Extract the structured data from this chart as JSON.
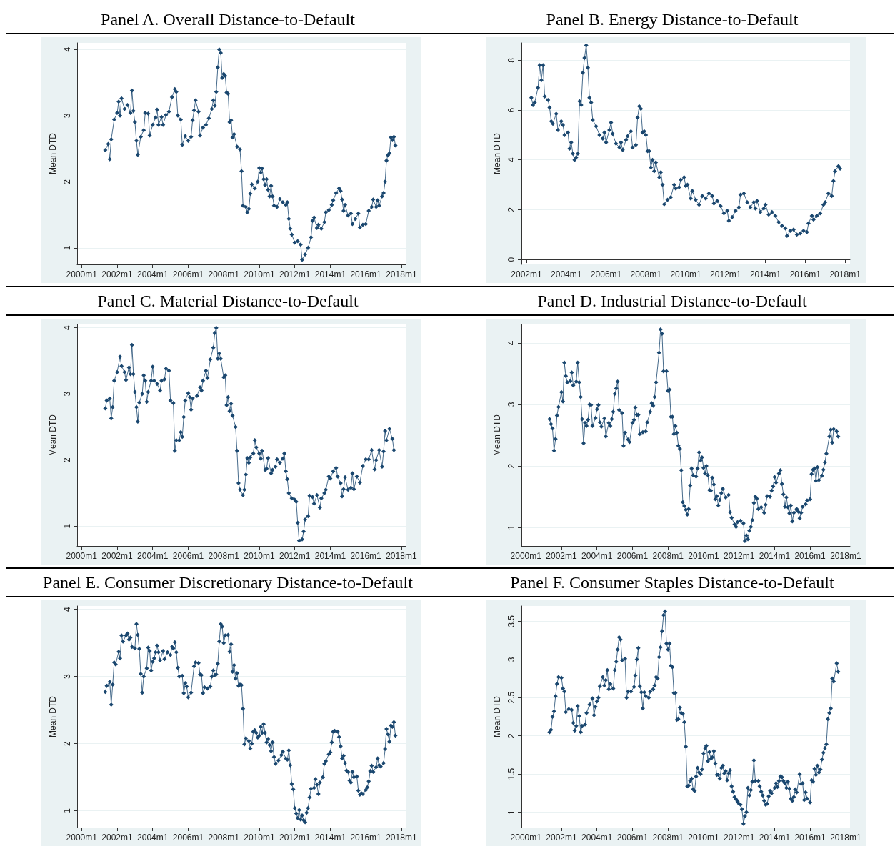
{
  "chart_data": [
    {
      "type": "line",
      "title": "Panel A. Overall Distance-to-Default",
      "ylabel": "Mean DTD",
      "color": "#1a476f",
      "marker": "diamond",
      "grid": "y",
      "xlim": [
        "1999-10",
        "2018-04"
      ],
      "ylim": [
        0.75,
        4.1
      ],
      "yticks": [
        1,
        2,
        3,
        4
      ],
      "xticks": [
        {
          "value": "2000-01",
          "label": "2000m1"
        },
        {
          "value": "2002-01",
          "label": "2002m1"
        },
        {
          "value": "2004-01",
          "label": "2004m1"
        },
        {
          "value": "2006-01",
          "label": "2006m1"
        },
        {
          "value": "2008-01",
          "label": "2008m1"
        },
        {
          "value": "2010-01",
          "label": "2010m1"
        },
        {
          "value": "2012-01",
          "label": "2012m1"
        },
        {
          "value": "2014-01",
          "label": "2014m1"
        },
        {
          "value": "2016-01",
          "label": "2016m1"
        },
        {
          "value": "2018-01",
          "label": "2018m1"
        }
      ],
      "x": [
        "2001-05",
        "2001-07",
        "2001-08",
        "2001-09",
        "2001-11",
        "2002-01",
        "2002-02",
        "2002-03",
        "2002-04",
        "2002-06",
        "2002-08",
        "2002-10",
        "2002-11",
        "2002-12",
        "2003-01",
        "2003-02",
        "2003-03",
        "2003-05",
        "2003-07",
        "2003-08",
        "2003-10",
        "2003-11",
        "2004-01",
        "2004-03",
        "2004-04",
        "2004-05",
        "2004-07",
        "2004-08",
        "2004-10",
        "2004-12",
        "2005-02",
        "2005-04",
        "2005-05",
        "2005-06",
        "2005-08",
        "2005-09",
        "2005-11",
        "2006-01",
        "2006-03",
        "2006-04",
        "2006-05",
        "2006-06",
        "2006-08",
        "2006-09",
        "2006-11",
        "2007-01",
        "2007-03",
        "2007-05",
        "2007-06",
        "2007-07",
        "2007-08",
        "2007-09",
        "2007-10",
        "2007-11",
        "2007-12",
        "2008-01",
        "2008-02",
        "2008-03",
        "2008-04",
        "2008-05",
        "2008-06",
        "2008-07",
        "2008-08",
        "2008-10",
        "2008-12",
        "2009-01",
        "2009-02",
        "2009-04",
        "2009-05",
        "2009-06",
        "2009-07",
        "2009-08",
        "2009-10",
        "2009-12",
        "2010-01",
        "2010-02",
        "2010-03",
        "2010-04",
        "2010-05",
        "2010-06",
        "2010-07",
        "2010-08",
        "2010-09",
        "2010-10",
        "2010-11",
        "2011-01",
        "2011-03",
        "2011-05",
        "2011-07",
        "2011-08",
        "2011-09",
        "2011-10",
        "2011-11",
        "2012-01",
        "2012-03",
        "2012-05",
        "2012-06",
        "2012-08",
        "2012-10",
        "2012-12",
        "2013-01",
        "2013-02",
        "2013-04",
        "2013-05",
        "2013-07",
        "2013-09",
        "2013-10",
        "2013-12",
        "2014-02",
        "2014-03",
        "2014-05",
        "2014-07",
        "2014-08",
        "2014-09",
        "2014-10",
        "2014-11",
        "2015-01",
        "2015-03",
        "2015-04",
        "2015-06",
        "2015-08",
        "2015-09",
        "2015-11",
        "2016-01",
        "2016-03",
        "2016-05",
        "2016-06",
        "2016-08",
        "2016-09",
        "2016-10",
        "2016-12",
        "2017-01",
        "2017-02",
        "2017-03",
        "2017-04",
        "2017-05",
        "2017-06",
        "2017-07",
        "2017-08",
        "2017-09"
      ],
      "values": [
        2.48,
        2.57,
        2.34,
        2.64,
        2.94,
        3.04,
        3.21,
        3.0,
        3.26,
        3.1,
        3.16,
        3.04,
        3.38,
        3.07,
        2.9,
        2.62,
        2.41,
        2.68,
        2.78,
        3.04,
        3.03,
        2.7,
        2.86,
        2.97,
        3.09,
        2.86,
        2.98,
        2.86,
        3.01,
        3.06,
        3.28,
        3.4,
        3.36,
        3.0,
        2.94,
        2.56,
        2.69,
        2.62,
        2.68,
        2.93,
        3.08,
        3.23,
        3.06,
        2.7,
        2.82,
        2.86,
        2.96,
        3.1,
        3.23,
        3.15,
        3.36,
        3.73,
        4.0,
        3.95,
        3.57,
        3.63,
        3.6,
        3.35,
        3.33,
        2.9,
        2.93,
        2.67,
        2.72,
        2.53,
        2.49,
        2.16,
        1.64,
        1.62,
        1.54,
        1.59,
        1.82,
        1.96,
        1.9,
        2.0,
        2.21,
        2.14,
        2.2,
        2.04,
        1.95,
        2.04,
        1.88,
        1.78,
        1.94,
        1.78,
        1.64,
        1.62,
        1.74,
        1.69,
        1.65,
        1.69,
        1.44,
        1.29,
        1.2,
        1.08,
        1.1,
        1.05,
        0.82,
        0.9,
        1.0,
        1.16,
        1.41,
        1.46,
        1.3,
        1.35,
        1.29,
        1.39,
        1.54,
        1.57,
        1.65,
        1.72,
        1.83,
        1.9,
        1.86,
        1.73,
        1.56,
        1.65,
        1.49,
        1.52,
        1.36,
        1.44,
        1.52,
        1.31,
        1.35,
        1.36,
        1.56,
        1.62,
        1.73,
        1.62,
        1.72,
        1.64,
        1.78,
        1.83,
        2.0,
        2.32,
        2.4,
        2.43,
        2.67,
        2.63,
        2.68,
        2.55
      ]
    },
    {
      "type": "line",
      "title": "Panel B. Energy Distance-to-Default",
      "ylabel": "Mean DTD",
      "color": "#1a476f",
      "marker": "diamond",
      "grid": "y",
      "xlim": [
        "2001-10",
        "2018-04"
      ],
      "ylim": [
        -0.2,
        8.7
      ],
      "yticks": [
        0,
        2,
        4,
        6,
        8
      ],
      "xticks": [
        {
          "value": "2002-01",
          "label": "2002m1"
        },
        {
          "value": "2004-01",
          "label": "2004m1"
        },
        {
          "value": "2006-01",
          "label": "2006m1"
        },
        {
          "value": "2008-01",
          "label": "2008m1"
        },
        {
          "value": "2010-01",
          "label": "2010m1"
        },
        {
          "value": "2012-01",
          "label": "2012m1"
        },
        {
          "value": "2014-01",
          "label": "2014m1"
        },
        {
          "value": "2016-01",
          "label": "2016m1"
        },
        {
          "value": "2018-01",
          "label": "2018m1"
        }
      ],
      "x": [
        "2002-04",
        "2002-05",
        "2002-06",
        "2002-08",
        "2002-09",
        "2002-10",
        "2002-11",
        "2002-12",
        "2003-02",
        "2003-03",
        "2003-04",
        "2003-05",
        "2003-07",
        "2003-08",
        "2003-10",
        "2003-11",
        "2003-12",
        "2004-02",
        "2004-03",
        "2004-04",
        "2004-05",
        "2004-06",
        "2004-07",
        "2004-08",
        "2004-09",
        "2004-10",
        "2004-11",
        "2004-12",
        "2005-01",
        "2005-02",
        "2005-03",
        "2005-04",
        "2005-05",
        "2005-07",
        "2005-09",
        "2005-11",
        "2005-12",
        "2006-01",
        "2006-03",
        "2006-04",
        "2006-05",
        "2006-07",
        "2006-09",
        "2006-10",
        "2006-11",
        "2007-01",
        "2007-02",
        "2007-04",
        "2007-05",
        "2007-07",
        "2007-08",
        "2007-09",
        "2007-10",
        "2007-11",
        "2007-12",
        "2008-01",
        "2008-02",
        "2008-03",
        "2008-04",
        "2008-05",
        "2008-06",
        "2008-07",
        "2008-09",
        "2008-10",
        "2008-11",
        "2008-12",
        "2009-02",
        "2009-04",
        "2009-06",
        "2009-07",
        "2009-09",
        "2009-10",
        "2009-12",
        "2010-01",
        "2010-02",
        "2010-04",
        "2010-05",
        "2010-07",
        "2010-09",
        "2010-11",
        "2011-01",
        "2011-03",
        "2011-05",
        "2011-06",
        "2011-08",
        "2011-10",
        "2011-12",
        "2012-02",
        "2012-03",
        "2012-05",
        "2012-07",
        "2012-09",
        "2012-10",
        "2012-12",
        "2013-02",
        "2013-04",
        "2013-06",
        "2013-07",
        "2013-08",
        "2013-10",
        "2013-12",
        "2014-01",
        "2014-03",
        "2014-05",
        "2014-07",
        "2014-09",
        "2014-11",
        "2015-01",
        "2015-02",
        "2015-04",
        "2015-06",
        "2015-08",
        "2015-10",
        "2015-12",
        "2016-02",
        "2016-03",
        "2016-05",
        "2016-06",
        "2016-08",
        "2016-10",
        "2016-12",
        "2017-01",
        "2017-03",
        "2017-05",
        "2017-06",
        "2017-07",
        "2017-09",
        "2017-10"
      ],
      "values": [
        6.5,
        6.2,
        6.3,
        6.9,
        7.8,
        7.2,
        7.8,
        6.55,
        6.4,
        6.1,
        5.55,
        5.45,
        5.85,
        5.2,
        5.55,
        5.4,
        5.0,
        5.1,
        4.45,
        4.7,
        4.25,
        4.0,
        4.1,
        4.25,
        6.35,
        6.2,
        7.5,
        8.1,
        8.6,
        7.7,
        6.5,
        6.3,
        5.6,
        5.35,
        5.0,
        4.85,
        5.1,
        4.7,
        5.2,
        5.5,
        5.05,
        4.65,
        4.5,
        4.7,
        4.4,
        4.8,
        4.95,
        5.15,
        4.5,
        4.6,
        5.7,
        6.15,
        6.05,
        5.1,
        5.15,
        5.0,
        4.35,
        4.35,
        3.7,
        4.0,
        3.55,
        3.9,
        3.3,
        3.5,
        3.0,
        2.22,
        2.4,
        2.5,
        3.0,
        2.85,
        2.9,
        3.2,
        3.3,
        2.95,
        3.0,
        2.45,
        2.75,
        2.4,
        2.2,
        2.55,
        2.45,
        2.65,
        2.55,
        2.25,
        2.35,
        2.15,
        1.85,
        1.95,
        1.55,
        1.7,
        1.95,
        2.1,
        2.6,
        2.65,
        2.3,
        2.1,
        2.3,
        2.05,
        2.35,
        1.9,
        2.05,
        2.2,
        1.8,
        1.9,
        1.75,
        1.5,
        1.35,
        1.25,
        0.95,
        1.15,
        1.2,
        1.0,
        1.05,
        1.15,
        1.1,
        1.45,
        1.75,
        1.6,
        1.75,
        1.85,
        2.2,
        2.3,
        2.65,
        2.55,
        3.15,
        3.55,
        3.75,
        3.65
      ]
    },
    {
      "type": "line",
      "title": "Panel C. Material Distance-to-Default",
      "ylabel": "Mean DTD",
      "color": "#1a476f",
      "marker": "diamond",
      "grid": "y",
      "xlim": [
        "1999-10",
        "2018-04"
      ],
      "ylim": [
        0.7,
        4.05
      ],
      "yticks": [
        1,
        2,
        3,
        4
      ],
      "xticks": [
        {
          "value": "2000-01",
          "label": "2000m1"
        },
        {
          "value": "2002-01",
          "label": "2002m1"
        },
        {
          "value": "2004-01",
          "label": "2004m1"
        },
        {
          "value": "2006-01",
          "label": "2006m1"
        },
        {
          "value": "2008-01",
          "label": "2008m1"
        },
        {
          "value": "2010-01",
          "label": "2010m1"
        },
        {
          "value": "2012-01",
          "label": "2012m1"
        },
        {
          "value": "2014-01",
          "label": "2014m1"
        },
        {
          "value": "2016-01",
          "label": "2016m1"
        },
        {
          "value": "2018-01",
          "label": "2018m1"
        }
      ],
      "x": [
        "2001-05",
        "2001-06",
        "2001-08",
        "2001-09",
        "2001-10",
        "2001-11",
        "2002-01",
        "2002-03",
        "2002-04",
        "2002-06",
        "2002-07",
        "2002-09",
        "2002-10",
        "2002-11",
        "2002-12",
        "2003-01",
        "2003-02",
        "2003-03",
        "2003-04",
        "2003-06",
        "2003-07",
        "2003-08",
        "2003-09",
        "2003-10",
        "2003-12",
        "2004-01",
        "2004-02",
        "2004-04",
        "2004-06",
        "2004-07",
        "2004-09",
        "2004-10",
        "2004-12",
        "2005-01",
        "2005-03",
        "2005-04",
        "2005-05",
        "2005-07",
        "2005-08",
        "2005-09",
        "2005-10",
        "2005-11",
        "2006-01",
        "2006-02",
        "2006-03",
        "2006-04",
        "2006-07",
        "2006-09",
        "2006-10",
        "2006-11",
        "2007-01",
        "2007-02",
        "2007-04",
        "2007-06",
        "2007-07",
        "2007-08",
        "2007-09",
        "2007-10",
        "2007-11",
        "2008-01",
        "2008-02",
        "2008-03",
        "2008-04",
        "2008-05",
        "2008-06",
        "2008-07",
        "2008-09",
        "2008-10",
        "2008-11",
        "2008-12",
        "2009-02",
        "2009-03",
        "2009-04",
        "2009-05",
        "2009-06",
        "2009-07",
        "2009-09",
        "2009-10",
        "2009-11",
        "2010-01",
        "2010-02",
        "2010-03",
        "2010-05",
        "2010-06",
        "2010-07",
        "2010-09",
        "2010-10",
        "2010-12",
        "2011-01",
        "2011-03",
        "2011-05",
        "2011-06",
        "2011-07",
        "2011-08",
        "2011-09",
        "2011-11",
        "2012-01",
        "2012-02",
        "2012-03",
        "2012-04",
        "2012-06",
        "2012-07",
        "2012-08",
        "2012-10",
        "2012-11",
        "2013-01",
        "2013-02",
        "2013-04",
        "2013-06",
        "2013-07",
        "2013-09",
        "2013-10",
        "2013-12",
        "2014-01",
        "2014-03",
        "2014-05",
        "2014-06",
        "2014-08",
        "2014-09",
        "2014-10",
        "2014-11",
        "2015-01",
        "2015-03",
        "2015-04",
        "2015-05",
        "2015-07",
        "2015-09",
        "2015-11",
        "2016-01",
        "2016-03",
        "2016-05",
        "2016-07",
        "2016-08",
        "2016-10",
        "2016-12",
        "2017-01",
        "2017-02",
        "2017-03",
        "2017-05",
        "2017-07",
        "2017-08"
      ],
      "values": [
        2.78,
        2.9,
        2.93,
        2.63,
        2.8,
        3.2,
        3.33,
        3.56,
        3.42,
        3.33,
        3.21,
        3.4,
        3.3,
        3.74,
        3.3,
        3.03,
        2.8,
        2.58,
        2.87,
        3.0,
        3.28,
        3.2,
        2.88,
        3.03,
        3.2,
        3.41,
        3.2,
        3.15,
        3.05,
        3.2,
        3.22,
        3.38,
        3.35,
        2.9,
        2.86,
        2.14,
        2.3,
        2.3,
        2.42,
        2.35,
        2.65,
        2.9,
        3.01,
        2.95,
        2.76,
        2.93,
        2.97,
        3.1,
        3.05,
        3.2,
        3.35,
        3.24,
        3.52,
        3.7,
        3.92,
        4.0,
        3.53,
        3.61,
        3.53,
        3.25,
        3.28,
        2.83,
        2.95,
        2.74,
        2.85,
        2.67,
        2.5,
        2.14,
        1.65,
        1.55,
        1.47,
        1.55,
        1.78,
        2.03,
        1.96,
        2.04,
        2.1,
        2.3,
        2.19,
        2.1,
        2.02,
        2.14,
        1.85,
        1.87,
        2.03,
        1.8,
        1.85,
        1.9,
        2.01,
        1.96,
        2.02,
        2.1,
        1.83,
        1.71,
        1.5,
        1.42,
        1.4,
        1.37,
        1.05,
        0.78,
        0.8,
        0.92,
        1.1,
        1.15,
        1.46,
        1.44,
        1.34,
        1.47,
        1.28,
        1.42,
        1.5,
        1.55,
        1.75,
        1.72,
        1.83,
        1.88,
        1.75,
        1.65,
        1.45,
        1.56,
        1.74,
        1.55,
        1.58,
        1.8,
        1.56,
        1.75,
        1.66,
        1.91,
        2.01,
        2.01,
        2.15,
        1.86,
        2.0,
        2.15,
        1.9,
        2.13,
        2.44,
        2.3,
        2.47,
        2.32,
        2.15
      ]
    },
    {
      "type": "line",
      "title": "Panel D. Industrial Distance-to-Default",
      "ylabel": "Mean DTD",
      "color": "#1a476f",
      "marker": "diamond",
      "grid": "y",
      "xlim": [
        "1999-10",
        "2018-04"
      ],
      "ylim": [
        0.7,
        4.3
      ],
      "yticks": [
        1,
        2,
        3,
        4
      ],
      "xticks": [
        {
          "value": "2000-01",
          "label": "2000m1"
        },
        {
          "value": "2002-01",
          "label": "2002m1"
        },
        {
          "value": "2004-01",
          "label": "2004m1"
        },
        {
          "value": "2006-01",
          "label": "2006m1"
        },
        {
          "value": "2008-01",
          "label": "2008m1"
        },
        {
          "value": "2010-01",
          "label": "2010m1"
        },
        {
          "value": "2012-01",
          "label": "2012m1"
        },
        {
          "value": "2014-01",
          "label": "2014m1"
        },
        {
          "value": "2016-01",
          "label": "2016m1"
        },
        {
          "value": "2018-01",
          "label": "2018m1"
        }
      ],
      "x": [
        "2001-05",
        "2001-06",
        "2001-07",
        "2001-08",
        "2001-09",
        "2001-10",
        "2001-11",
        "2002-01",
        "2002-02",
        "2002-03",
        "2002-04",
        "2002-05",
        "2002-07",
        "2002-08",
        "2002-09",
        "2002-11",
        "2002-12",
        "2003-01",
        "2003-02",
        "2003-03",
        "2003-04",
        "2003-05",
        "2003-06",
        "2003-07",
        "2003-08",
        "2003-09",
        "2003-10",
        "2003-12",
        "2004-01",
        "2004-02",
        "2004-03",
        "2004-04",
        "2004-06",
        "2004-07",
        "2004-09",
        "2004-10",
        "2004-11",
        "2004-12",
        "2005-01",
        "2005-02",
        "2005-03",
        "2005-04",
        "2005-06",
        "2005-07",
        "2005-08",
        "2005-10",
        "2005-11",
        "2006-01",
        "2006-02",
        "2006-03",
        "2006-04",
        "2006-05",
        "2006-06",
        "2006-08",
        "2006-10",
        "2006-11",
        "2007-01",
        "2007-02",
        "2007-03",
        "2007-04",
        "2007-05",
        "2007-07",
        "2007-08",
        "2007-09",
        "2007-10",
        "2007-12",
        "2008-01",
        "2008-02",
        "2008-03",
        "2008-04",
        "2008-05",
        "2008-06",
        "2008-07",
        "2008-08",
        "2008-09",
        "2008-10",
        "2008-11",
        "2008-12",
        "2009-01",
        "2009-02",
        "2009-03",
        "2009-04",
        "2009-05",
        "2009-06",
        "2009-08",
        "2009-09",
        "2009-10",
        "2009-11",
        "2009-12",
        "2010-01",
        "2010-02",
        "2010-03",
        "2010-04",
        "2010-05",
        "2010-06",
        "2010-07",
        "2010-08",
        "2010-09",
        "2010-10",
        "2010-11",
        "2010-12",
        "2011-01",
        "2011-02",
        "2011-04",
        "2011-06",
        "2011-07",
        "2011-08",
        "2011-10",
        "2011-11",
        "2011-12",
        "2012-02",
        "2012-04",
        "2012-05",
        "2012-06",
        "2012-07",
        "2012-08",
        "2012-09",
        "2012-10",
        "2012-11",
        "2012-12",
        "2013-01",
        "2013-02",
        "2013-04",
        "2013-06",
        "2013-07",
        "2013-08",
        "2013-10",
        "2013-11",
        "2013-12",
        "2014-01",
        "2014-02",
        "2014-04",
        "2014-05",
        "2014-06",
        "2014-07",
        "2014-08",
        "2014-09",
        "2014-10",
        "2014-11",
        "2014-12",
        "2015-01",
        "2015-02",
        "2015-04",
        "2015-05",
        "2015-06",
        "2015-07",
        "2015-08",
        "2015-10",
        "2015-11",
        "2016-01",
        "2016-02",
        "2016-03",
        "2016-04",
        "2016-05",
        "2016-06",
        "2016-07",
        "2016-09",
        "2016-10",
        "2016-11",
        "2016-12",
        "2017-02",
        "2017-03",
        "2017-04",
        "2017-05",
        "2017-07",
        "2017-08"
      ],
      "values": [
        2.76,
        2.68,
        2.61,
        2.25,
        2.44,
        2.82,
        2.96,
        3.2,
        3.05,
        3.68,
        3.46,
        3.36,
        3.38,
        3.52,
        3.31,
        3.37,
        3.68,
        3.36,
        3.12,
        2.76,
        2.37,
        2.7,
        2.65,
        2.75,
        3.0,
        2.99,
        2.65,
        2.78,
        2.92,
        2.99,
        2.71,
        2.64,
        2.77,
        2.48,
        2.7,
        2.65,
        2.76,
        2.88,
        3.17,
        3.26,
        3.37,
        2.91,
        2.86,
        2.33,
        2.54,
        2.43,
        2.39,
        2.7,
        2.75,
        2.95,
        2.83,
        2.83,
        2.52,
        2.55,
        2.56,
        2.71,
        2.88,
        3.02,
        2.98,
        3.12,
        3.36,
        3.84,
        4.22,
        4.15,
        3.54,
        3.54,
        3.22,
        3.24,
        2.8,
        2.8,
        2.52,
        2.65,
        2.54,
        2.33,
        2.28,
        1.93,
        1.41,
        1.35,
        1.29,
        1.21,
        1.3,
        1.68,
        1.96,
        1.85,
        1.83,
        1.96,
        2.22,
        2.09,
        2.14,
        1.97,
        1.88,
        2.0,
        1.85,
        1.61,
        1.6,
        1.81,
        1.7,
        1.46,
        1.51,
        1.36,
        1.45,
        1.56,
        1.63,
        1.49,
        1.53,
        1.25,
        1.16,
        1.05,
        1.01,
        1.09,
        1.11,
        1.07,
        0.78,
        0.87,
        0.81,
        0.95,
        1.01,
        1.12,
        1.4,
        1.5,
        1.47,
        1.3,
        1.33,
        1.24,
        1.37,
        1.51,
        1.5,
        1.6,
        1.67,
        1.82,
        1.73,
        1.88,
        1.93,
        1.71,
        1.54,
        1.34,
        1.49,
        1.33,
        1.23,
        1.36,
        1.1,
        1.24,
        1.3,
        1.26,
        1.15,
        1.24,
        1.34,
        1.38,
        1.44,
        1.46,
        1.87,
        1.94,
        1.96,
        1.76,
        1.98,
        1.77,
        1.84,
        1.94,
        2.06,
        2.2,
        2.48,
        2.59,
        2.38,
        2.6,
        2.56,
        2.48
      ]
    },
    {
      "type": "line",
      "title": "Panel E. Consumer Discretionary Distance-to-Default",
      "ylabel": "Mean DTD",
      "color": "#1a476f",
      "marker": "diamond",
      "grid": "y",
      "xlim": [
        "1999-10",
        "2018-04"
      ],
      "ylim": [
        0.75,
        4.05
      ],
      "yticks": [
        1,
        2,
        3,
        4
      ],
      "xticks": [
        {
          "value": "2000-01",
          "label": "2000m1"
        },
        {
          "value": "2002-01",
          "label": "2002m1"
        },
        {
          "value": "2004-01",
          "label": "2004m1"
        },
        {
          "value": "2006-01",
          "label": "2006m1"
        },
        {
          "value": "2008-01",
          "label": "2008m1"
        },
        {
          "value": "2010-01",
          "label": "2010m1"
        },
        {
          "value": "2012-01",
          "label": "2012m1"
        },
        {
          "value": "2014-01",
          "label": "2014m1"
        },
        {
          "value": "2016-01",
          "label": "2016m1"
        },
        {
          "value": "2018-01",
          "label": "2018m1"
        }
      ],
      "x": [
        "2001-05",
        "2001-06",
        "2001-08",
        "2001-09",
        "2001-10",
        "2001-11",
        "2001-12",
        "2002-02",
        "2002-03",
        "2002-04",
        "2002-05",
        "2002-07",
        "2002-08",
        "2002-09",
        "2002-10",
        "2002-11",
        "2003-01",
        "2003-02",
        "2003-03",
        "2003-04",
        "2003-05",
        "2003-06",
        "2003-07",
        "2003-09",
        "2003-10",
        "2003-11",
        "2003-12",
        "2004-01",
        "2004-02",
        "2004-03",
        "2004-04",
        "2004-05",
        "2004-06",
        "2004-08",
        "2004-09",
        "2004-11",
        "2005-01",
        "2005-02",
        "2005-03",
        "2005-04",
        "2005-05",
        "2005-06",
        "2005-07",
        "2005-09",
        "2005-10",
        "2005-11",
        "2005-12",
        "2006-01",
        "2006-03",
        "2006-05",
        "2006-06",
        "2006-08",
        "2006-09",
        "2006-10",
        "2006-11",
        "2006-12",
        "2007-02",
        "2007-04",
        "2007-05",
        "2007-06",
        "2007-07",
        "2007-08",
        "2007-09",
        "2007-10",
        "2007-11",
        "2007-12",
        "2008-01",
        "2008-02",
        "2008-04",
        "2008-05",
        "2008-06",
        "2008-07",
        "2008-08",
        "2008-09",
        "2008-10",
        "2008-11",
        "2008-12",
        "2009-01",
        "2009-02",
        "2009-03",
        "2009-04",
        "2009-06",
        "2009-07",
        "2009-08",
        "2009-09",
        "2009-10",
        "2009-11",
        "2009-12",
        "2010-01",
        "2010-02",
        "2010-03",
        "2010-04",
        "2010-05",
        "2010-06",
        "2010-07",
        "2010-08",
        "2010-09",
        "2010-10",
        "2010-11",
        "2010-12",
        "2011-02",
        "2011-04",
        "2011-05",
        "2011-07",
        "2011-08",
        "2011-09",
        "2011-10",
        "2011-11",
        "2011-12",
        "2012-01",
        "2012-02",
        "2012-03",
        "2012-04",
        "2012-05",
        "2012-06",
        "2012-07",
        "2012-08",
        "2012-09",
        "2012-10",
        "2012-11",
        "2012-12",
        "2013-02",
        "2013-03",
        "2013-04",
        "2013-05",
        "2013-06",
        "2013-08",
        "2013-09",
        "2013-10",
        "2013-12",
        "2014-01",
        "2014-02",
        "2014-03",
        "2014-04",
        "2014-06",
        "2014-07",
        "2014-08",
        "2014-09",
        "2014-10",
        "2014-11",
        "2014-12",
        "2015-01",
        "2015-02",
        "2015-03",
        "2015-04",
        "2015-05",
        "2015-07",
        "2015-08",
        "2015-09",
        "2015-10",
        "2015-11",
        "2016-01",
        "2016-02",
        "2016-03",
        "2016-04",
        "2016-05",
        "2016-06",
        "2016-08",
        "2016-09",
        "2016-10",
        "2016-11",
        "2017-01",
        "2017-02",
        "2017-03",
        "2017-04",
        "2017-05",
        "2017-06",
        "2017-07",
        "2017-08",
        "2017-09"
      ],
      "values": [
        2.77,
        2.86,
        2.92,
        2.58,
        2.88,
        3.21,
        3.18,
        3.37,
        3.27,
        3.61,
        3.52,
        3.61,
        3.64,
        3.55,
        3.58,
        3.44,
        3.42,
        3.78,
        3.62,
        3.41,
        3.04,
        2.76,
        3.0,
        3.12,
        3.43,
        3.38,
        3.09,
        3.22,
        3.27,
        3.36,
        3.46,
        3.36,
        3.24,
        3.38,
        3.26,
        3.36,
        3.32,
        3.44,
        3.42,
        3.51,
        3.36,
        3.13,
        3.0,
        3.01,
        2.75,
        2.9,
        2.85,
        2.69,
        2.76,
        3.15,
        3.21,
        3.2,
        3.03,
        3.02,
        2.75,
        2.84,
        2.82,
        2.85,
        3.0,
        3.09,
        3.02,
        3.03,
        3.19,
        3.52,
        3.78,
        3.74,
        3.5,
        3.61,
        3.62,
        3.37,
        3.48,
        3.07,
        3.17,
        2.97,
        3.05,
        2.86,
        2.88,
        2.87,
        2.52,
        1.99,
        2.08,
        2.04,
        1.93,
        2.0,
        2.18,
        2.2,
        2.16,
        2.09,
        2.12,
        2.25,
        2.16,
        2.29,
        2.16,
        2.02,
        2.07,
        1.98,
        1.89,
        2.02,
        1.8,
        1.7,
        1.75,
        1.83,
        1.88,
        1.78,
        1.76,
        1.9,
        1.68,
        1.4,
        1.32,
        1.04,
        0.96,
        0.89,
        1.01,
        0.87,
        0.93,
        0.86,
        0.83,
        0.97,
        1.04,
        1.2,
        1.33,
        1.34,
        1.47,
        1.39,
        1.25,
        1.42,
        1.5,
        1.7,
        1.74,
        1.84,
        1.87,
        2.02,
        2.18,
        2.19,
        2.18,
        2.1,
        1.96,
        1.78,
        1.82,
        1.71,
        1.6,
        1.58,
        1.45,
        1.42,
        1.58,
        1.5,
        1.51,
        1.3,
        1.24,
        1.26,
        1.25,
        1.31,
        1.35,
        1.44,
        1.59,
        1.67,
        1.58,
        1.65,
        1.78,
        1.68,
        1.66,
        1.71,
        1.92,
        2.22,
        2.14,
        2.03,
        2.27,
        2.25,
        2.32,
        2.12
      ]
    },
    {
      "type": "line",
      "title": "Panel F. Consumer Staples Distance-to-Default",
      "ylabel": "Mean DTD",
      "color": "#1a476f",
      "marker": "diamond",
      "grid": "y",
      "xlim": [
        "1999-10",
        "2018-04"
      ],
      "ylim": [
        0.8,
        3.7
      ],
      "yticks": [
        1,
        1.5,
        2,
        2.5,
        3,
        3.5
      ],
      "xticks": [
        {
          "value": "2000-01",
          "label": "2000m1"
        },
        {
          "value": "2002-01",
          "label": "2002m1"
        },
        {
          "value": "2004-01",
          "label": "2004m1"
        },
        {
          "value": "2006-01",
          "label": "2006m1"
        },
        {
          "value": "2008-01",
          "label": "2008m1"
        },
        {
          "value": "2010-01",
          "label": "2010m1"
        },
        {
          "value": "2012-01",
          "label": "2012m1"
        },
        {
          "value": "2014-01",
          "label": "2014m1"
        },
        {
          "value": "2016-01",
          "label": "2016m1"
        },
        {
          "value": "2018-01",
          "label": "2018m1"
        }
      ],
      "x": [
        "2001-05",
        "2001-06",
        "2001-07",
        "2001-08",
        "2001-09",
        "2001-10",
        "2001-11",
        "2002-01",
        "2002-02",
        "2002-03",
        "2002-04",
        "2002-06",
        "2002-08",
        "2002-09",
        "2002-10",
        "2002-11",
        "2002-12",
        "2003-01",
        "2003-02",
        "2003-03",
        "2003-05",
        "2003-06",
        "2003-08",
        "2003-10",
        "2003-11",
        "2003-12",
        "2004-01",
        "2004-02",
        "2004-03",
        "2004-05",
        "2004-06",
        "2004-07",
        "2004-08",
        "2004-09",
        "2004-10",
        "2004-12",
        "2005-01",
        "2005-02",
        "2005-03",
        "2005-04",
        "2005-05",
        "2005-06",
        "2005-08",
        "2005-09",
        "2005-10",
        "2005-12",
        "2006-02",
        "2006-03",
        "2006-04",
        "2006-05",
        "2006-06",
        "2006-07",
        "2006-08",
        "2006-09",
        "2006-10",
        "2006-12",
        "2007-01",
        "2007-03",
        "2007-04",
        "2007-05",
        "2007-06",
        "2007-07",
        "2007-08",
        "2007-09",
        "2007-10",
        "2007-11",
        "2007-12",
        "2008-01",
        "2008-02",
        "2008-03",
        "2008-04",
        "2008-05",
        "2008-06",
        "2008-07",
        "2008-08",
        "2008-09",
        "2008-10",
        "2008-11",
        "2008-12",
        "2009-01",
        "2009-02",
        "2009-03",
        "2009-04",
        "2009-05",
        "2009-06",
        "2009-07",
        "2009-08",
        "2009-09",
        "2009-10",
        "2009-11",
        "2009-12",
        "2010-01",
        "2010-02",
        "2010-03",
        "2010-04",
        "2010-05",
        "2010-06",
        "2010-07",
        "2010-08",
        "2010-09",
        "2010-10",
        "2010-11",
        "2010-12",
        "2011-01",
        "2011-02",
        "2011-03",
        "2011-04",
        "2011-05",
        "2011-06",
        "2011-07",
        "2011-08",
        "2011-09",
        "2011-10",
        "2011-11",
        "2011-12",
        "2012-01",
        "2012-02",
        "2012-03",
        "2012-04",
        "2012-05",
        "2012-06",
        "2012-07",
        "2012-08",
        "2012-09",
        "2012-10",
        "2012-11",
        "2012-12",
        "2013-02",
        "2013-03",
        "2013-04",
        "2013-05",
        "2013-06",
        "2013-07",
        "2013-08",
        "2013-09",
        "2013-10",
        "2013-11",
        "2014-01",
        "2014-02",
        "2014-03",
        "2014-04",
        "2014-05",
        "2014-06",
        "2014-07",
        "2014-08",
        "2014-09",
        "2014-10",
        "2014-11",
        "2014-12",
        "2015-01",
        "2015-02",
        "2015-03",
        "2015-04",
        "2015-06",
        "2015-07",
        "2015-08",
        "2015-09",
        "2015-10",
        "2015-11",
        "2016-01",
        "2016-02",
        "2016-03",
        "2016-04",
        "2016-05",
        "2016-06",
        "2016-07",
        "2016-08",
        "2016-09",
        "2016-10",
        "2016-11",
        "2016-12",
        "2017-01",
        "2017-02",
        "2017-03",
        "2017-04",
        "2017-05",
        "2017-07",
        "2017-08"
      ],
      "values": [
        2.05,
        2.08,
        2.25,
        2.32,
        2.52,
        2.68,
        2.77,
        2.76,
        2.62,
        2.58,
        2.31,
        2.35,
        2.34,
        2.17,
        2.07,
        2.13,
        2.39,
        2.26,
        2.05,
        2.13,
        2.15,
        2.3,
        2.41,
        2.49,
        2.27,
        2.38,
        2.45,
        2.5,
        2.65,
        2.77,
        2.66,
        2.73,
        2.86,
        2.61,
        2.68,
        2.62,
        2.86,
        2.97,
        3.13,
        3.29,
        3.26,
        2.99,
        3.01,
        2.5,
        2.58,
        2.58,
        2.64,
        2.79,
        3.0,
        3.15,
        2.65,
        2.57,
        2.36,
        2.57,
        2.52,
        2.5,
        2.58,
        2.61,
        2.66,
        2.77,
        2.75,
        3.03,
        3.16,
        3.37,
        3.58,
        3.63,
        3.21,
        3.13,
        3.21,
        2.92,
        2.9,
        2.56,
        2.56,
        2.21,
        2.22,
        2.37,
        2.3,
        2.29,
        2.18,
        1.86,
        1.34,
        1.35,
        1.41,
        1.44,
        1.3,
        1.28,
        1.47,
        1.58,
        1.52,
        1.5,
        1.56,
        1.77,
        1.84,
        1.87,
        1.67,
        1.79,
        1.7,
        1.72,
        1.8,
        1.64,
        1.49,
        1.49,
        1.44,
        1.58,
        1.61,
        1.51,
        1.54,
        1.42,
        1.51,
        1.55,
        1.34,
        1.27,
        1.2,
        1.17,
        1.14,
        1.11,
        1.1,
        1.04,
        0.85,
        0.95,
        1.0,
        1.32,
        1.22,
        1.29,
        1.4,
        1.68,
        1.41,
        1.41,
        1.34,
        1.27,
        1.22,
        1.15,
        1.1,
        1.11,
        1.21,
        1.28,
        1.25,
        1.32,
        1.38,
        1.33,
        1.41,
        1.47,
        1.46,
        1.41,
        1.38,
        1.32,
        1.4,
        1.31,
        1.18,
        1.15,
        1.2,
        1.3,
        1.26,
        1.5,
        1.37,
        1.38,
        1.16,
        1.26,
        1.18,
        1.13,
        1.42,
        1.4,
        1.57,
        1.49,
        1.61,
        1.52,
        1.56,
        1.69,
        1.78,
        1.84,
        1.89,
        2.22,
        2.3,
        2.36,
        2.75,
        2.71,
        2.95,
        2.84
      ]
    }
  ]
}
